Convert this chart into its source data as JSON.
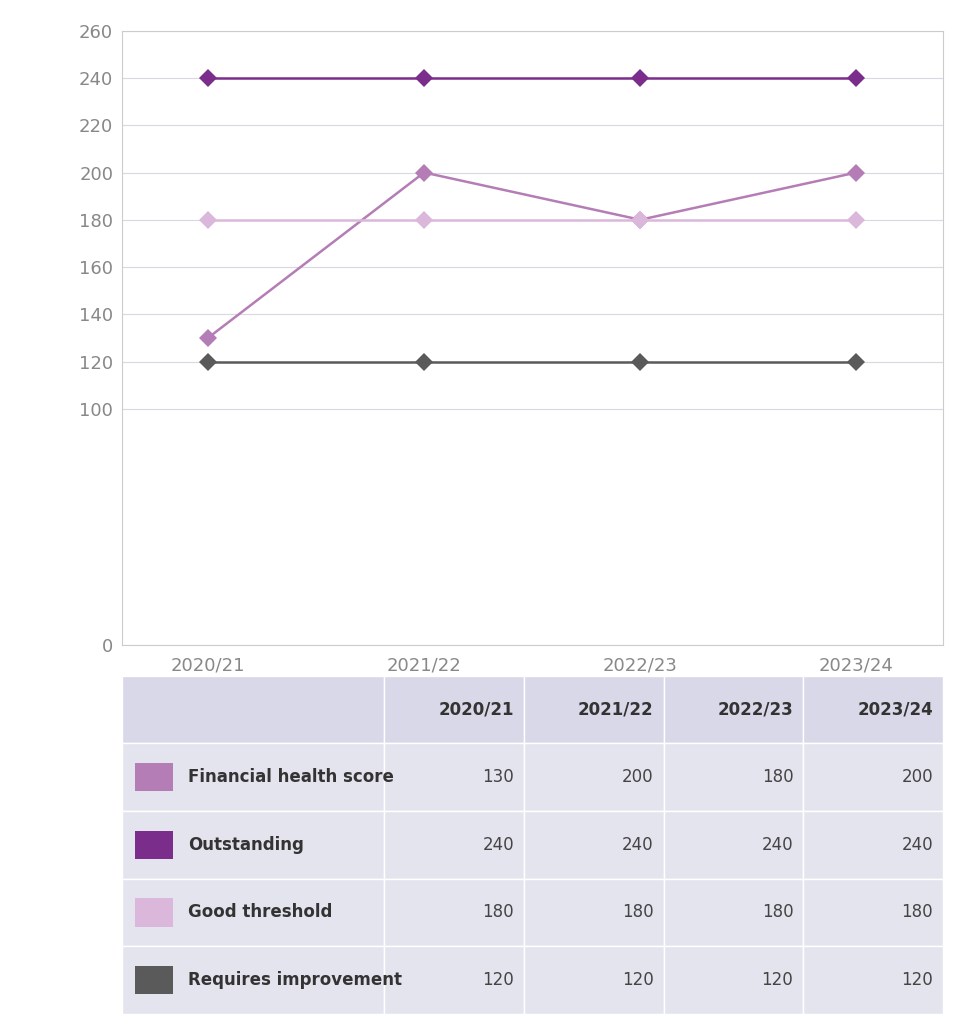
{
  "years": [
    "2020/21",
    "2021/22",
    "2022/23",
    "2023/24"
  ],
  "financial_health_score": [
    130,
    200,
    180,
    200
  ],
  "outstanding": [
    240,
    240,
    240,
    240
  ],
  "good_threshold": [
    180,
    180,
    180,
    180
  ],
  "requires_improvement": [
    120,
    120,
    120,
    120
  ],
  "colors": {
    "financial_health_score": "#b57db5",
    "outstanding": "#7b2d8b",
    "good_threshold": "#dbb8db",
    "requires_improvement": "#5a5a5a"
  },
  "ylim": [
    0,
    260
  ],
  "yticks": [
    0,
    100,
    120,
    140,
    160,
    180,
    200,
    220,
    240,
    260
  ],
  "background_color": "#ffffff",
  "plot_background": "#ffffff",
  "grid_color": "#d8d8e0",
  "table_bg": "#e4e4ef",
  "table_header_bg": "#d8d8e8",
  "marker": "D",
  "marker_size": 9,
  "line_width": 1.8,
  "label_financial_health_score": "Financial health score",
  "label_outstanding": "Outstanding",
  "label_good_threshold": "Good threshold",
  "label_requires_improvement": "Requires improvement",
  "tick_color": "#888888",
  "tick_fontsize": 13,
  "table_fontsize": 12
}
